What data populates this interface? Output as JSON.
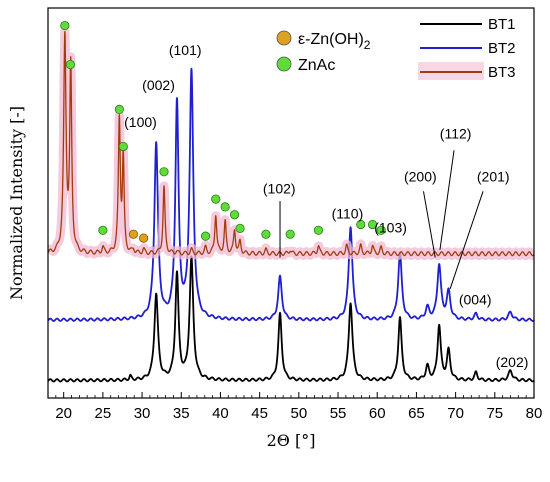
{
  "chart_data": {
    "type": "line",
    "title": "",
    "xlabel": "2Θ [°]",
    "ylabel": "Normalized Intensity [-]",
    "xlim": [
      18,
      80
    ],
    "ylim": [
      0,
      1
    ],
    "x_ticks": [
      "20",
      "25",
      "30",
      "35",
      "40",
      "45",
      "50",
      "55",
      "60",
      "65",
      "70",
      "75",
      "80"
    ],
    "x_tick_values": [
      20,
      25,
      30,
      35,
      40,
      45,
      50,
      55,
      60,
      65,
      70,
      75,
      80
    ],
    "grid": false,
    "legend_position": "top-right",
    "series": [
      {
        "name": "BT1",
        "color": "#000000",
        "baseline": 0.045,
        "peaks": [
          {
            "x": 28.5,
            "h": 0.01,
            "w": 0.15
          },
          {
            "x": 31.8,
            "h": 0.22,
            "w": 0.28
          },
          {
            "x": 34.45,
            "h": 0.27,
            "w": 0.25
          },
          {
            "x": 36.3,
            "h": 0.31,
            "w": 0.28
          },
          {
            "x": 47.6,
            "h": 0.17,
            "w": 0.26
          },
          {
            "x": 56.6,
            "h": 0.2,
            "w": 0.28
          },
          {
            "x": 62.9,
            "h": 0.16,
            "w": 0.26
          },
          {
            "x": 66.4,
            "h": 0.035,
            "w": 0.25
          },
          {
            "x": 67.9,
            "h": 0.14,
            "w": 0.25
          },
          {
            "x": 69.1,
            "h": 0.075,
            "w": 0.25
          },
          {
            "x": 72.6,
            "h": 0.02,
            "w": 0.22
          },
          {
            "x": 77.0,
            "h": 0.025,
            "w": 0.3
          }
        ]
      },
      {
        "name": "BT2",
        "color": "#1f1fcf",
        "baseline": 0.2,
        "peaks": [
          {
            "x": 31.8,
            "h": 0.45,
            "w": 0.28
          },
          {
            "x": 34.45,
            "h": 0.55,
            "w": 0.25
          },
          {
            "x": 36.3,
            "h": 0.63,
            "w": 0.28
          },
          {
            "x": 47.6,
            "h": 0.11,
            "w": 0.28
          },
          {
            "x": 56.6,
            "h": 0.24,
            "w": 0.28
          },
          {
            "x": 62.9,
            "h": 0.17,
            "w": 0.28
          },
          {
            "x": 66.4,
            "h": 0.03,
            "w": 0.28
          },
          {
            "x": 67.9,
            "h": 0.14,
            "w": 0.28
          },
          {
            "x": 69.1,
            "h": 0.07,
            "w": 0.28
          },
          {
            "x": 72.6,
            "h": 0.015,
            "w": 0.25
          },
          {
            "x": 77.0,
            "h": 0.02,
            "w": 0.3
          }
        ]
      },
      {
        "name": "BT3",
        "color": "#a23b0f",
        "baseline": 0.37,
        "peaks": [
          {
            "x": 20.15,
            "h": 0.55,
            "w": 0.18
          },
          {
            "x": 20.9,
            "h": 0.47,
            "w": 0.15
          },
          {
            "x": 25.0,
            "h": 0.015,
            "w": 0.15
          },
          {
            "x": 27.1,
            "h": 0.34,
            "w": 0.15
          },
          {
            "x": 27.6,
            "h": 0.24,
            "w": 0.13
          },
          {
            "x": 28.9,
            "h": 0.01,
            "w": 0.15
          },
          {
            "x": 30.2,
            "h": 0.01,
            "w": 0.15
          },
          {
            "x": 32.8,
            "h": 0.17,
            "w": 0.15
          },
          {
            "x": 34.4,
            "h": 0.005,
            "w": 0.15
          },
          {
            "x": 36.3,
            "h": 0.01,
            "w": 0.15
          },
          {
            "x": 38.1,
            "h": 0.015,
            "w": 0.15
          },
          {
            "x": 39.4,
            "h": 0.1,
            "w": 0.15
          },
          {
            "x": 40.6,
            "h": 0.08,
            "w": 0.15
          },
          {
            "x": 41.8,
            "h": 0.06,
            "w": 0.15
          },
          {
            "x": 42.5,
            "h": 0.03,
            "w": 0.15
          },
          {
            "x": 45.8,
            "h": 0.01,
            "w": 0.15
          },
          {
            "x": 48.9,
            "h": 0.01,
            "w": 0.15
          },
          {
            "x": 52.5,
            "h": 0.02,
            "w": 0.15
          },
          {
            "x": 56.1,
            "h": 0.02,
            "w": 0.15
          },
          {
            "x": 57.9,
            "h": 0.02,
            "w": 0.15
          },
          {
            "x": 59.4,
            "h": 0.02,
            "w": 0.15
          },
          {
            "x": 60.5,
            "h": 0.015,
            "w": 0.15
          }
        ]
      }
    ],
    "markers": {
      "epsilon_zn_oh2": {
        "color": "#e0a020",
        "points": [
          {
            "x": 28.9,
            "y": 0.42
          },
          {
            "x": 30.2,
            "y": 0.41
          }
        ]
      },
      "znac": {
        "color": "#5fdc3a",
        "points": [
          {
            "x": 20.15,
            "y": 0.955
          },
          {
            "x": 20.85,
            "y": 0.855
          },
          {
            "x": 25.0,
            "y": 0.43
          },
          {
            "x": 27.1,
            "y": 0.74
          },
          {
            "x": 27.6,
            "y": 0.645
          },
          {
            "x": 32.8,
            "y": 0.58
          },
          {
            "x": 38.1,
            "y": 0.415
          },
          {
            "x": 39.4,
            "y": 0.51
          },
          {
            "x": 40.6,
            "y": 0.49
          },
          {
            "x": 41.8,
            "y": 0.47
          },
          {
            "x": 42.5,
            "y": 0.435
          },
          {
            "x": 45.8,
            "y": 0.42
          },
          {
            "x": 48.9,
            "y": 0.42
          },
          {
            "x": 52.5,
            "y": 0.43
          },
          {
            "x": 57.9,
            "y": 0.445
          },
          {
            "x": 59.4,
            "y": 0.445
          },
          {
            "x": 60.5,
            "y": 0.43
          }
        ]
      }
    },
    "annotations": [
      {
        "text": "(100)",
        "x": 29.8,
        "y": 0.695
      },
      {
        "text": "(002)",
        "x": 32.1,
        "y": 0.79
      },
      {
        "text": "(101)",
        "x": 35.5,
        "y": 0.88
      },
      {
        "text": "(102)",
        "x": 47.5,
        "y": 0.525
      },
      {
        "text": "(110)",
        "x": 56.2,
        "y": 0.46
      },
      {
        "text": "(103)",
        "x": 61.7,
        "y": 0.425
      },
      {
        "text": "(200)",
        "x": 65.5,
        "y": 0.555
      },
      {
        "text": "(112)",
        "x": 70.0,
        "y": 0.665
      },
      {
        "text": "(201)",
        "x": 74.8,
        "y": 0.555
      },
      {
        "text": "(004)",
        "x": 72.5,
        "y": 0.24
      },
      {
        "text": "(202)",
        "x": 77.2,
        "y": 0.08
      }
    ],
    "leaders": [
      {
        "x1": 47.6,
        "y1": 0.505,
        "x2": 47.6,
        "y2": 0.36
      },
      {
        "x1": 65.9,
        "y1": 0.53,
        "x2": 67.4,
        "y2": 0.36
      },
      {
        "x1": 69.8,
        "y1": 0.635,
        "x2": 68.0,
        "y2": 0.38
      },
      {
        "x1": 73.5,
        "y1": 0.53,
        "x2": 69.3,
        "y2": 0.28
      }
    ]
  },
  "legend_right": [
    {
      "label": "BT1",
      "color": "#000000"
    },
    {
      "label": "BT2",
      "color": "#1f1fcf"
    },
    {
      "label": "BT3",
      "color": "#a23b0f"
    }
  ],
  "legend_left": [
    {
      "label": "ε-Zn(OH)",
      "sub": "2",
      "color": "#e0a020"
    },
    {
      "label": "ZnAc",
      "sub": "",
      "color": "#5fdc3a"
    }
  ]
}
